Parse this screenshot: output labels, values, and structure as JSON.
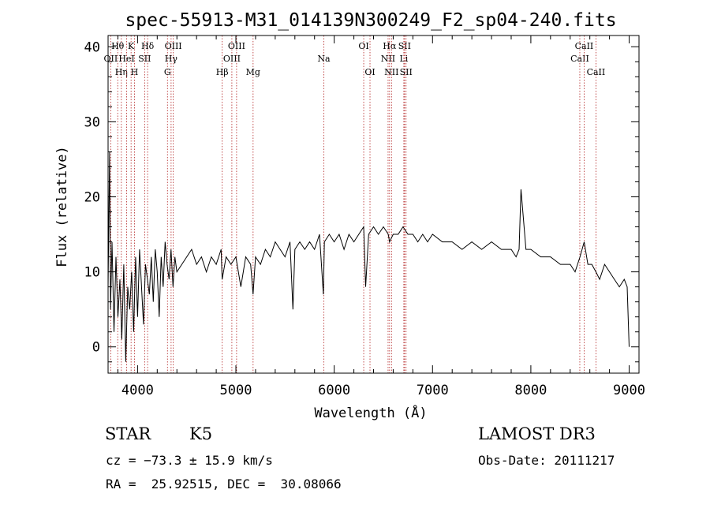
{
  "chart_data": {
    "type": "line",
    "title": "spec-55913-M31_014139N300249_F2_sp04-240.fits",
    "xlabel": "Wavelength (Å)",
    "ylabel": "Flux (relative)",
    "xlim": [
      3700,
      9100
    ],
    "ylim": [
      -3.5,
      41.5
    ],
    "xticks": [
      4000,
      5000,
      6000,
      7000,
      8000,
      9000
    ],
    "yticks": [
      0,
      10,
      20,
      30,
      40
    ],
    "series": [
      {
        "name": "spectrum",
        "x": [
          3700,
          3715,
          3725,
          3740,
          3760,
          3780,
          3800,
          3820,
          3840,
          3860,
          3880,
          3900,
          3920,
          3940,
          3960,
          3980,
          4000,
          4020,
          4040,
          4060,
          4080,
          4100,
          4120,
          4140,
          4160,
          4180,
          4200,
          4220,
          4240,
          4260,
          4280,
          4300,
          4320,
          4340,
          4360,
          4380,
          4400,
          4450,
          4500,
          4550,
          4600,
          4650,
          4700,
          4750,
          4800,
          4850,
          4860,
          4900,
          4950,
          5000,
          5050,
          5100,
          5150,
          5175,
          5200,
          5250,
          5300,
          5350,
          5400,
          5450,
          5500,
          5550,
          5580,
          5600,
          5650,
          5700,
          5750,
          5800,
          5850,
          5890,
          5900,
          5950,
          6000,
          6050,
          6100,
          6150,
          6200,
          6250,
          6300,
          6320,
          6350,
          6400,
          6450,
          6500,
          6550,
          6563,
          6600,
          6650,
          6700,
          6750,
          6800,
          6850,
          6900,
          6950,
          7000,
          7100,
          7200,
          7300,
          7400,
          7500,
          7600,
          7700,
          7800,
          7850,
          7880,
          7900,
          7950,
          8000,
          8100,
          8200,
          8300,
          8400,
          8450,
          8500,
          8542,
          8580,
          8620,
          8662,
          8700,
          8750,
          8800,
          8850,
          8900,
          8950,
          8980,
          9000
        ],
        "y": [
          8,
          26,
          5,
          14,
          2,
          12,
          4,
          9,
          1,
          11,
          -2,
          8,
          5,
          10,
          2,
          12,
          4,
          13,
          8,
          3,
          11,
          9,
          7,
          12,
          6,
          13,
          10,
          4,
          12,
          8,
          14,
          11,
          9,
          13,
          8,
          12,
          10,
          11,
          12,
          13,
          11,
          12,
          10,
          12,
          11,
          13,
          9,
          12,
          11,
          12,
          8,
          12,
          11,
          7,
          12,
          11,
          13,
          12,
          14,
          13,
          12,
          14,
          5,
          13,
          14,
          13,
          14,
          13,
          15,
          7,
          14,
          15,
          14,
          15,
          13,
          15,
          14,
          15,
          16,
          8,
          15,
          16,
          15,
          16,
          15,
          14,
          15,
          15,
          16,
          15,
          15,
          14,
          15,
          14,
          15,
          14,
          14,
          13,
          14,
          13,
          14,
          13,
          13,
          12,
          13,
          21,
          13,
          13,
          12,
          12,
          11,
          11,
          10,
          12,
          14,
          11,
          11,
          10,
          9,
          11,
          10,
          9,
          8,
          9,
          8,
          0
        ],
        "color": "#000000"
      }
    ],
    "lines": [
      {
        "label": "OII",
        "wave": 3727,
        "row": 2
      },
      {
        "label": "Hθ",
        "wave": 3798,
        "row": 1
      },
      {
        "label": "Hη",
        "wave": 3835,
        "row": 3
      },
      {
        "label": "HeI",
        "wave": 3889,
        "row": 2
      },
      {
        "label": "K",
        "wave": 3934,
        "row": 1
      },
      {
        "label": "H",
        "wave": 3968,
        "row": 3
      },
      {
        "label": "SII",
        "wave": 4072,
        "row": 2
      },
      {
        "label": "Hδ",
        "wave": 4102,
        "row": 1
      },
      {
        "label": "G",
        "wave": 4304,
        "row": 3
      },
      {
        "label": "Hγ",
        "wave": 4341,
        "row": 2
      },
      {
        "label": "OIII",
        "wave": 4363,
        "row": 1
      },
      {
        "label": "Hβ",
        "wave": 4861,
        "row": 3
      },
      {
        "label": "OIII",
        "wave": 4959,
        "row": 2
      },
      {
        "label": "OIII",
        "wave": 5007,
        "row": 1
      },
      {
        "label": "Mg",
        "wave": 5175,
        "row": 3
      },
      {
        "label": "Na",
        "wave": 5894,
        "row": 2
      },
      {
        "label": "OI",
        "wave": 6300,
        "row": 1
      },
      {
        "label": "OI",
        "wave": 6364,
        "row": 3
      },
      {
        "label": "NII",
        "wave": 6548,
        "row": 2
      },
      {
        "label": "Hα",
        "wave": 6563,
        "row": 1
      },
      {
        "label": "NII",
        "wave": 6583,
        "row": 3
      },
      {
        "label": "Li",
        "wave": 6708,
        "row": 2
      },
      {
        "label": "SII",
        "wave": 6716,
        "row": 1
      },
      {
        "label": "SII",
        "wave": 6731,
        "row": 3
      },
      {
        "label": "CaII",
        "wave": 8498,
        "row": 2
      },
      {
        "label": "CaII",
        "wave": 8542,
        "row": 1
      },
      {
        "label": "CaII",
        "wave": 8662,
        "row": 3
      }
    ]
  },
  "info": {
    "class": "STAR",
    "subclass": "K5",
    "survey": "LAMOST DR3",
    "cz_line": "cz = −73.3 ± 15.9 km/s",
    "obs_date": "Obs-Date: 20111217",
    "coords": "RA =  25.92515, DEC =  30.08066"
  }
}
